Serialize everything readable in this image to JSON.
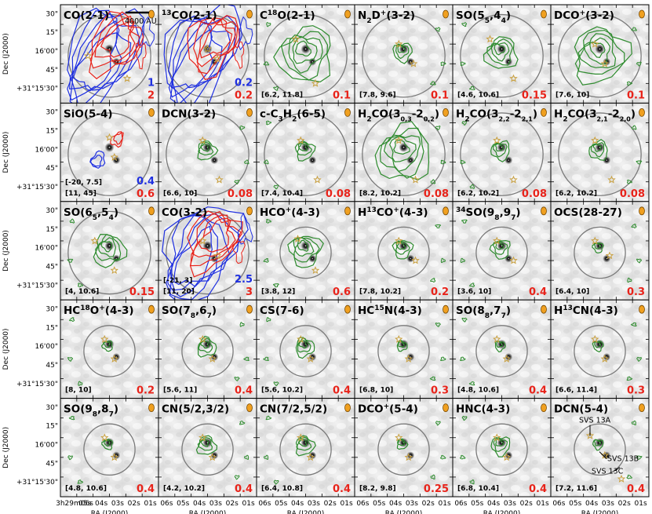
{
  "chart_data": {
    "type": "contour-map-grid",
    "panels": [
      {
        "title": "CO(2-1)",
        "levels": [
          {
            "text": "1",
            "color": "#1f30e0"
          },
          {
            "text": "2",
            "color": "#e8231a"
          }
        ],
        "range": "",
        "contours": "bluered",
        "stars": [
          [
            0.28,
            0.52
          ],
          [
            0.68,
            0.75
          ]
        ],
        "scale": "4000 AU"
      },
      {
        "title": "13CO(2-1)",
        "levels": [
          {
            "text": "0.2",
            "color": "#1f30e0"
          },
          {
            "text": "0.2",
            "color": "#e8231a"
          }
        ],
        "range": "",
        "contours": "bluered",
        "stars": [
          [
            0.5,
            0.45
          ],
          [
            0.6,
            0.55
          ]
        ]
      },
      {
        "title": "C18O(2-1)",
        "levels": [
          {
            "text": "0.1",
            "color": "#e8231a"
          }
        ],
        "range": "[6.2, 11.8]",
        "contours": "green-big",
        "stars": [
          [
            0.4,
            0.35
          ],
          [
            0.6,
            0.8
          ]
        ]
      },
      {
        "title": "N2D+(3-2)",
        "levels": [
          {
            "text": "0.1",
            "color": "#e8231a"
          }
        ],
        "range": "[7.8, 9.6]",
        "contours": "green-small",
        "stars": [
          [
            0.45,
            0.4
          ],
          [
            0.6,
            0.6
          ]
        ]
      },
      {
        "title": "SO(54)",
        "levels": [
          {
            "text": "0.15",
            "color": "#e8231a"
          }
        ],
        "range": "[4.6, 10.6]",
        "contours": "green-mid",
        "stars": [
          [
            0.38,
            0.35
          ],
          [
            0.62,
            0.75
          ]
        ]
      },
      {
        "title": "DCO+(3-2)",
        "levels": [
          {
            "text": "0.1",
            "color": "#e8231a"
          }
        ],
        "range": "[7.6, 10]",
        "contours": "green-big",
        "stars": [
          [
            0.45,
            0.4
          ],
          [
            0.55,
            0.6
          ]
        ]
      },
      {
        "title": "SiO(5-4)",
        "levels": [
          {
            "text": "0.4",
            "color": "#1f30e0"
          },
          {
            "text": "0.6",
            "color": "#e8231a"
          }
        ],
        "range": "[-20, 7.5]",
        "range2": "[11, 45]",
        "contours": "sio",
        "stars": [
          [
            0.5,
            0.35
          ],
          [
            0.55,
            0.55
          ]
        ]
      },
      {
        "title": "DCN(3-2)",
        "levels": [
          {
            "text": "0.08",
            "color": "#e8231a"
          }
        ],
        "range": "[6.6, 10]",
        "contours": "green-small",
        "stars": [
          [
            0.45,
            0.38
          ],
          [
            0.62,
            0.78
          ]
        ]
      },
      {
        "title": "c-C3H2(6-5)",
        "levels": [
          {
            "text": "0.08",
            "color": "#e8231a"
          }
        ],
        "range": "[7.4, 10.4]",
        "contours": "green-small",
        "stars": [
          [
            0.45,
            0.38
          ],
          [
            0.62,
            0.78
          ]
        ]
      },
      {
        "title": "H2CO(3,0,3-2,0,2)",
        "levels": [
          {
            "text": "0.08",
            "color": "#e8231a"
          }
        ],
        "range": "[8.2, 10.2]",
        "contours": "green-big",
        "stars": [
          [
            0.45,
            0.38
          ],
          [
            0.62,
            0.78
          ]
        ]
      },
      {
        "title": "H2CO(3,2,2-2,2,1)",
        "levels": [
          {
            "text": "0.08",
            "color": "#e8231a"
          }
        ],
        "range": "[6.2, 10.2]",
        "contours": "green-small",
        "stars": [
          [
            0.45,
            0.38
          ],
          [
            0.62,
            0.78
          ]
        ]
      },
      {
        "title": "H2CO(3,2,1-2,2,0)",
        "levels": [
          {
            "text": "0.08",
            "color": "#e8231a"
          }
        ],
        "range": "[6.2, 10.2]",
        "contours": "green-small",
        "stars": [
          [
            0.45,
            0.38
          ],
          [
            0.62,
            0.78
          ]
        ]
      },
      {
        "title": "SO(65,54)",
        "levels": [
          {
            "text": "0.15",
            "color": "#e8231a"
          }
        ],
        "range": "[4, 10.6]",
        "contours": "green-mid",
        "stars": [
          [
            0.35,
            0.4
          ],
          [
            0.55,
            0.7
          ]
        ]
      },
      {
        "title": "CO(3-2)",
        "levels": [
          {
            "text": "2.5",
            "color": "#1f30e0"
          },
          {
            "text": "3",
            "color": "#e8231a"
          }
        ],
        "range": "[-21, 3]",
        "range2": "[11, 20]",
        "contours": "bluered",
        "stars": [
          [
            0.45,
            0.4
          ],
          [
            0.6,
            0.55
          ]
        ]
      },
      {
        "title": "HCO+(4-3)",
        "levels": [
          {
            "text": "0.6",
            "color": "#e8231a"
          }
        ],
        "range": "[3.8, 12]",
        "contours": "green-mid",
        "stars": [
          [
            0.42,
            0.38
          ],
          [
            0.6,
            0.7
          ]
        ]
      },
      {
        "title": "H13CO+(4-3)",
        "levels": [
          {
            "text": "0.2",
            "color": "#e8231a"
          }
        ],
        "range": "[7.8, 10.2]",
        "contours": "green-small",
        "stars": [
          [
            0.45,
            0.4
          ],
          [
            0.62,
            0.6
          ]
        ]
      },
      {
        "title": "34SO(98,97)",
        "levels": [
          {
            "text": "0.4",
            "color": "#e8231a"
          }
        ],
        "range": "[3.6, 10]",
        "contours": "green-small",
        "stars": [
          [
            0.45,
            0.4
          ],
          [
            0.62,
            0.6
          ]
        ]
      },
      {
        "title": "OCS(28-27)",
        "levels": [
          {
            "text": "0.3",
            "color": "#e8231a"
          }
        ],
        "range": "[6.4, 10]",
        "contours": "green-tiny",
        "stars": [
          [
            0.45,
            0.4
          ],
          [
            0.6,
            0.55
          ]
        ]
      },
      {
        "title": "HC18O+(4-3)",
        "levels": [
          {
            "text": "0.2",
            "color": "#e8231a"
          }
        ],
        "range": "[8, 10]",
        "contours": "green-tiny",
        "stars": [
          [
            0.45,
            0.4
          ],
          [
            0.55,
            0.6
          ]
        ]
      },
      {
        "title": "SO(78,67)",
        "levels": [
          {
            "text": "0.4",
            "color": "#e8231a"
          }
        ],
        "range": "[5.6, 11]",
        "contours": "green-small",
        "stars": [
          [
            0.45,
            0.4
          ],
          [
            0.55,
            0.6
          ]
        ]
      },
      {
        "title": "CS(7-6)",
        "levels": [
          {
            "text": "0.4",
            "color": "#e8231a"
          }
        ],
        "range": "[5.6, 10.2]",
        "contours": "green-small",
        "stars": [
          [
            0.45,
            0.4
          ],
          [
            0.55,
            0.6
          ]
        ]
      },
      {
        "title": "HC15N(4-3)",
        "levels": [
          {
            "text": "0.3",
            "color": "#e8231a"
          }
        ],
        "range": "[6.8, 10]",
        "contours": "green-tiny",
        "stars": [
          [
            0.45,
            0.4
          ],
          [
            0.55,
            0.6
          ]
        ]
      },
      {
        "title": "SO(88,77)",
        "levels": [
          {
            "text": "0.4",
            "color": "#e8231a"
          }
        ],
        "range": "[4.8, 10.6]",
        "contours": "green-tiny",
        "stars": [
          [
            0.45,
            0.4
          ],
          [
            0.55,
            0.6
          ]
        ]
      },
      {
        "title": "H13CN(4-3)",
        "levels": [
          {
            "text": "0.3",
            "color": "#e8231a"
          }
        ],
        "range": "[6.6, 11.4]",
        "contours": "green-tiny",
        "stars": [
          [
            0.45,
            0.4
          ],
          [
            0.55,
            0.6
          ]
        ]
      },
      {
        "title": "SO(98,87)",
        "levels": [
          {
            "text": "0.4",
            "color": "#e8231a"
          }
        ],
        "range": "[4.8, 10.6]",
        "contours": "green-tiny",
        "stars": [
          [
            0.45,
            0.4
          ],
          [
            0.55,
            0.6
          ]
        ]
      },
      {
        "title": "CN(5/2,3/2)",
        "levels": [
          {
            "text": "0.4",
            "color": "#e8231a"
          }
        ],
        "range": "[4.2, 10.2]",
        "contours": "green-small",
        "stars": [
          [
            0.45,
            0.4
          ],
          [
            0.55,
            0.6
          ]
        ]
      },
      {
        "title": "CN(7/2,5/2)",
        "levels": [
          {
            "text": "0.4",
            "color": "#e8231a"
          }
        ],
        "range": "[6.4, 10.8]",
        "contours": "green-small",
        "stars": [
          [
            0.45,
            0.4
          ],
          [
            0.55,
            0.6
          ]
        ]
      },
      {
        "title": "DCO+(5-4)",
        "levels": [
          {
            "text": "0.25",
            "color": "#e8231a"
          }
        ],
        "range": "[8.2, 9.8]",
        "contours": "green-tiny",
        "stars": [
          [
            0.45,
            0.4
          ],
          [
            0.55,
            0.6
          ]
        ]
      },
      {
        "title": "HNC(4-3)",
        "levels": [
          {
            "text": "0.4",
            "color": "#e8231a"
          }
        ],
        "range": "[6.8, 10.4]",
        "contours": "green-small",
        "stars": [
          [
            0.45,
            0.4
          ],
          [
            0.55,
            0.6
          ]
        ]
      },
      {
        "title": "DCN(5-4)",
        "levels": [
          {
            "text": "0.4",
            "color": "#e8231a"
          }
        ],
        "range": "[7.2, 11.6]",
        "contours": "green-tiny",
        "stars": [
          [
            0.4,
            0.38
          ],
          [
            0.55,
            0.58
          ],
          [
            0.72,
            0.82
          ]
        ],
        "annotations": [
          "SVS 13A",
          "SVS 13B",
          "SVS 13C"
        ]
      }
    ],
    "titles_rich": [
      "CO(2-1)",
      "<tspan baseline-shift='super' font-size='9'>13</tspan>CO(2-1)",
      "C<tspan baseline-shift='super' font-size='9'>18</tspan>O(2-1)",
      "N<tspan baseline-shift='sub' font-size='9'>2</tspan>D<tspan baseline-shift='super' font-size='9'>+</tspan>(3-2)",
      "SO(5<tspan baseline-shift='sub' font-size='9'>5</tspan>,4<tspan baseline-shift='sub' font-size='9'>4</tspan>)",
      "DCO<tspan baseline-shift='super' font-size='9'>+</tspan>(3-2)",
      "SiO(5-4)",
      "DCN(3-2)",
      "c-C<tspan baseline-shift='sub' font-size='9'>3</tspan>H<tspan baseline-shift='sub' font-size='9'>2</tspan>(6-5)",
      "H<tspan baseline-shift='sub' font-size='9'>2</tspan>CO(3<tspan baseline-shift='sub' font-size='8'>0,3</tspan>-2<tspan baseline-shift='sub' font-size='8'>0,2</tspan>)",
      "H<tspan baseline-shift='sub' font-size='9'>2</tspan>CO(3<tspan baseline-shift='sub' font-size='8'>2,2</tspan>-2<tspan baseline-shift='sub' font-size='8'>2,1</tspan>)",
      "H<tspan baseline-shift='sub' font-size='9'>2</tspan>CO(3<tspan baseline-shift='sub' font-size='8'>2,1</tspan>-2<tspan baseline-shift='sub' font-size='8'>2,0</tspan>)",
      "SO(6<tspan baseline-shift='sub' font-size='9'>5</tspan>,5<tspan baseline-shift='sub' font-size='9'>4</tspan>)",
      "CO(3-2)",
      "HCO<tspan baseline-shift='super' font-size='9'>+</tspan>(4-3)",
      "H<tspan baseline-shift='super' font-size='9'>13</tspan>CO<tspan baseline-shift='super' font-size='9'>+</tspan>(4-3)",
      "<tspan baseline-shift='super' font-size='9'>34</tspan>SO(9<tspan baseline-shift='sub' font-size='9'>8</tspan>,9<tspan baseline-shift='sub' font-size='9'>7</tspan>)",
      "OCS(28-27)",
      "HC<tspan baseline-shift='super' font-size='9'>18</tspan>O<tspan baseline-shift='super' font-size='9'>+</tspan>(4-3)",
      "SO(7<tspan baseline-shift='sub' font-size='9'>8</tspan>,6<tspan baseline-shift='sub' font-size='9'>7</tspan>)",
      "CS(7-6)",
      "HC<tspan baseline-shift='super' font-size='9'>15</tspan>N(4-3)",
      "SO(8<tspan baseline-shift='sub' font-size='9'>8</tspan>,7<tspan baseline-shift='sub' font-size='9'>7</tspan>)",
      "H<tspan baseline-shift='super' font-size='9'>13</tspan>CN(4-3)",
      "SO(9<tspan baseline-shift='sub' font-size='9'>8</tspan>,8<tspan baseline-shift='sub' font-size='9'>7</tspan>)",
      "CN(5/2,3/2)",
      "CN(7/2,5/2)",
      "DCO<tspan baseline-shift='super' font-size='9'>+</tspan>(5-4)",
      "HNC(4-3)",
      "DCN(5-4)"
    ],
    "yticks": [
      "30\"",
      "15\"",
      "16'00\"",
      "45\"",
      "+31°15'30\""
    ],
    "xticks_first": [
      "3h29m06s",
      "05s",
      "04s",
      "03s",
      "02s",
      "01s"
    ],
    "xticks_other": [
      "06s",
      "05s",
      "04s",
      "03s",
      "02s",
      "01s"
    ],
    "ylabel": "Dec (J2000)",
    "xlabel": "RA (J2000)",
    "colors": {
      "green": "#2e8b2e",
      "blue": "#1f30e0",
      "red": "#e8231a",
      "star": "#c8a040",
      "beam": "#f0a020",
      "circle": "#7a7a7a"
    }
  }
}
